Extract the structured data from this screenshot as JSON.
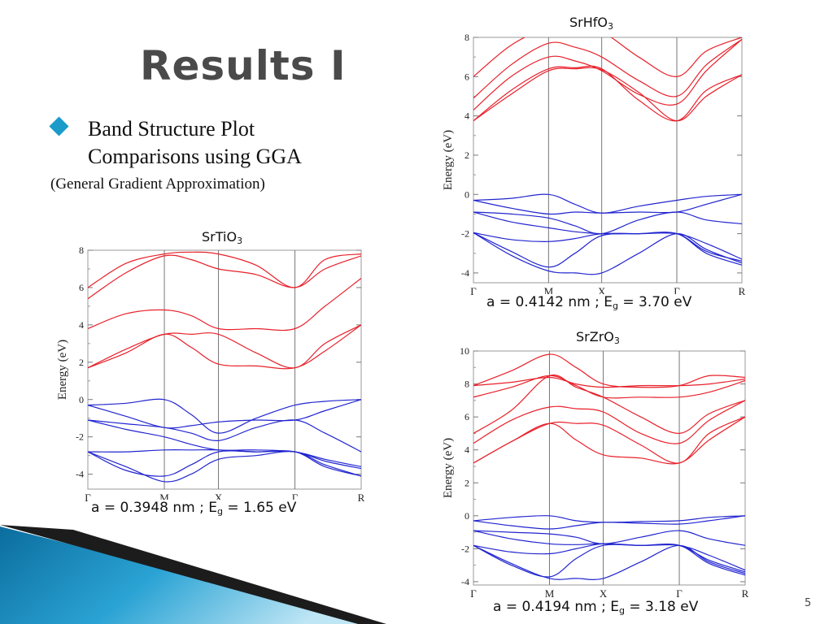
{
  "slide": {
    "title": "Results I",
    "bullet_lines": [
      "Band Structure Plot",
      "Comparisons using GGA"
    ],
    "sub_text": "(General Gradient Approximation)",
    "page_number": "5"
  },
  "colors": {
    "conduction": "#e8202a",
    "valence": "#2125cf",
    "bullet": "#1a9bc9",
    "title": "#4a4a4a"
  },
  "panels": {
    "srhfo3": {
      "title_main": "SrHfO",
      "title_sub": "3",
      "caption_a": "a = 0.4142 nm ; E",
      "caption_sub": "g",
      "caption_b": " = 3.70 eV"
    },
    "srtio3": {
      "title_main": "SrTiO",
      "title_sub": "3",
      "caption_a": "a = 0.3948 nm ; E",
      "caption_sub": "g",
      "caption_b": " = 1.65 eV"
    },
    "srzro3": {
      "title_main": "SrZrO",
      "title_sub": "3",
      "caption_a": "a = 0.4194 nm ; E",
      "caption_sub": "g",
      "caption_b": " = 3.18 eV"
    }
  },
  "chart_data": [
    {
      "type": "line",
      "title": "SrHfO3",
      "ylabel": "Energy (eV)",
      "ylim": [
        -4.5,
        8
      ],
      "yticks": [
        -4,
        -2,
        0,
        2,
        4,
        6,
        8
      ],
      "kpoints": [
        "Γ",
        "M",
        "X",
        "Γ",
        "R"
      ],
      "kpoint_positions": [
        0,
        1,
        1.7071,
        2.7071,
        3.5731
      ],
      "grid": false,
      "series": [
        {
          "band": "conduction",
          "x": [
            0,
            0.5,
            1,
            1.35,
            1.7071,
            2.2,
            2.7071,
            3.1,
            3.5731
          ],
          "y": [
            3.75,
            5.3,
            6.4,
            6.45,
            6.4,
            4.8,
            3.75,
            5.3,
            6.1
          ]
        },
        {
          "band": "conduction",
          "x": [
            0,
            0.5,
            1,
            1.35,
            1.7071,
            2.2,
            2.7071,
            3.1,
            3.5731
          ],
          "y": [
            3.75,
            5.1,
            6.3,
            6.4,
            6.35,
            5.2,
            3.75,
            5.0,
            6.1
          ]
        },
        {
          "band": "conduction",
          "x": [
            0,
            0.5,
            1,
            1.35,
            1.7071,
            2.2,
            2.7071,
            3.1,
            3.5731
          ],
          "y": [
            4.3,
            6.0,
            7.0,
            6.8,
            6.3,
            5.1,
            4.6,
            6.3,
            7.9
          ]
        },
        {
          "band": "conduction",
          "x": [
            0,
            0.5,
            1,
            1.35,
            1.7071,
            2.2,
            2.7071,
            3.1,
            3.5731
          ],
          "y": [
            4.9,
            6.6,
            7.7,
            7.5,
            7.0,
            5.8,
            5.0,
            6.6,
            7.9
          ]
        },
        {
          "band": "conduction",
          "x": [
            0,
            0.5,
            1,
            1.35,
            1.7071,
            2.2,
            2.7071,
            3.1,
            3.5731
          ],
          "y": [
            6.0,
            7.6,
            8.5,
            8.5,
            8.3,
            7.0,
            6.0,
            7.3,
            8.0
          ]
        },
        {
          "band": "valence",
          "x": [
            0,
            0.5,
            1,
            1.35,
            1.7071,
            2.2,
            2.7071,
            3.1,
            3.5731
          ],
          "y": [
            -0.3,
            -0.2,
            0.0,
            -0.5,
            -0.95,
            -0.6,
            -0.3,
            -0.1,
            0.0
          ]
        },
        {
          "band": "valence",
          "x": [
            0,
            0.5,
            1,
            1.35,
            1.7071,
            2.2,
            2.7071,
            3.1,
            3.5731
          ],
          "y": [
            -0.3,
            -0.7,
            -1.0,
            -0.9,
            -0.95,
            -0.9,
            -0.9,
            -0.5,
            0.0
          ]
        },
        {
          "band": "valence",
          "x": [
            0,
            0.5,
            1,
            1.35,
            1.7071,
            2.2,
            2.7071,
            3.1,
            3.5731
          ],
          "y": [
            -0.9,
            -1.0,
            -1.2,
            -1.6,
            -2.0,
            -1.3,
            -0.9,
            -1.3,
            -1.5
          ]
        },
        {
          "band": "valence",
          "x": [
            0,
            0.5,
            1,
            1.35,
            1.7071,
            2.2,
            2.7071,
            3.1,
            3.5731
          ],
          "y": [
            -0.9,
            -1.4,
            -1.7,
            -1.9,
            -2.0,
            -2.0,
            -2.0,
            -2.5,
            -3.3
          ]
        },
        {
          "band": "valence",
          "x": [
            0,
            0.5,
            1,
            1.35,
            1.7071,
            2.2,
            2.7071,
            3.1,
            3.5731
          ],
          "y": [
            -1.95,
            -2.3,
            -2.4,
            -2.25,
            -2.0,
            -2.0,
            -2.0,
            -2.9,
            -3.4
          ]
        },
        {
          "band": "valence",
          "x": [
            0,
            0.5,
            1,
            1.35,
            1.7071,
            2.2,
            2.7071,
            3.1,
            3.5731
          ],
          "y": [
            -1.95,
            -3.1,
            -3.9,
            -4.0,
            -4.0,
            -3.0,
            -2.0,
            -2.8,
            -3.5
          ]
        },
        {
          "band": "valence",
          "x": [
            0,
            0.5,
            1,
            1.35,
            1.7071,
            2.2,
            2.7071,
            3.1,
            3.5731
          ],
          "y": [
            -1.95,
            -2.9,
            -3.7,
            -3.0,
            -2.1,
            -2.0,
            -2.0,
            -3.0,
            -3.6
          ]
        }
      ]
    },
    {
      "type": "line",
      "title": "SrTiO3",
      "ylabel": "Energy (eV)",
      "ylim": [
        -4.8,
        8
      ],
      "yticks": [
        -4,
        -2,
        0,
        2,
        4,
        6,
        8
      ],
      "kpoints": [
        "Γ",
        "M",
        "X",
        "Γ",
        "R"
      ],
      "kpoint_positions": [
        0,
        1,
        1.7071,
        2.7071,
        3.5731
      ],
      "grid": false,
      "series": [
        {
          "band": "conduction",
          "x": [
            0,
            0.5,
            1,
            1.35,
            1.7071,
            2.2,
            2.7071,
            3.1,
            3.5731
          ],
          "y": [
            1.7,
            2.7,
            3.5,
            3.5,
            3.5,
            2.5,
            1.7,
            3.0,
            4.0
          ]
        },
        {
          "band": "conduction",
          "x": [
            0,
            0.5,
            1,
            1.35,
            1.7071,
            2.2,
            2.7071,
            3.1,
            3.5731
          ],
          "y": [
            1.7,
            2.5,
            3.5,
            2.8,
            1.9,
            1.8,
            1.7,
            2.6,
            4.0
          ]
        },
        {
          "band": "conduction",
          "x": [
            0,
            0.5,
            1,
            1.35,
            1.7071,
            2.2,
            2.7071,
            3.1,
            3.5731
          ],
          "y": [
            3.8,
            4.6,
            4.8,
            4.5,
            3.8,
            3.8,
            3.8,
            5.0,
            6.5
          ]
        },
        {
          "band": "conduction",
          "x": [
            0,
            0.5,
            1,
            1.35,
            1.7071,
            2.2,
            2.7071,
            3.1,
            3.5731
          ],
          "y": [
            5.4,
            6.8,
            7.7,
            7.5,
            7.0,
            6.7,
            6.0,
            7.0,
            7.7
          ]
        },
        {
          "band": "conduction",
          "x": [
            0,
            0.5,
            1,
            1.35,
            1.7071,
            2.2,
            2.7071,
            3.1,
            3.5731
          ],
          "y": [
            6.0,
            7.3,
            7.8,
            7.9,
            7.8,
            7.2,
            6.0,
            7.5,
            7.8
          ]
        },
        {
          "band": "valence",
          "x": [
            0,
            0.5,
            1,
            1.35,
            1.7071,
            2.2,
            2.7071,
            3.1,
            3.5731
          ],
          "y": [
            -0.3,
            -0.2,
            0.0,
            -0.8,
            -1.8,
            -1.0,
            -0.3,
            -0.1,
            0.0
          ]
        },
        {
          "band": "valence",
          "x": [
            0,
            0.5,
            1,
            1.35,
            1.7071,
            2.2,
            2.7071,
            3.1,
            3.5731
          ],
          "y": [
            -0.3,
            -0.9,
            -1.5,
            -1.4,
            -1.2,
            -1.1,
            -1.1,
            -0.6,
            0.0
          ]
        },
        {
          "band": "valence",
          "x": [
            0,
            0.5,
            1,
            1.35,
            1.7071,
            2.2,
            2.7071,
            3.1,
            3.5731
          ],
          "y": [
            -1.1,
            -1.3,
            -1.5,
            -1.8,
            -2.2,
            -1.5,
            -1.1,
            -1.8,
            -2.8
          ]
        },
        {
          "band": "valence",
          "x": [
            0,
            0.5,
            1,
            1.35,
            1.7071,
            2.2,
            2.7071,
            3.1,
            3.5731
          ],
          "y": [
            -1.1,
            -1.6,
            -2.0,
            -2.4,
            -2.7,
            -2.7,
            -2.8,
            -3.2,
            -3.6
          ]
        },
        {
          "band": "valence",
          "x": [
            0,
            0.5,
            1,
            1.35,
            1.7071,
            2.2,
            2.7071,
            3.1,
            3.5731
          ],
          "y": [
            -2.8,
            -2.8,
            -2.7,
            -2.7,
            -2.7,
            -2.8,
            -2.8,
            -3.3,
            -3.7
          ]
        },
        {
          "band": "valence",
          "x": [
            0,
            0.5,
            1,
            1.35,
            1.7071,
            2.2,
            2.7071,
            3.1,
            3.5731
          ],
          "y": [
            -2.8,
            -3.6,
            -4.4,
            -4.0,
            -3.2,
            -3.0,
            -2.8,
            -3.5,
            -4.1
          ]
        },
        {
          "band": "valence",
          "x": [
            0,
            0.5,
            1,
            1.35,
            1.7071,
            2.2,
            2.7071,
            3.1,
            3.5731
          ],
          "y": [
            -2.8,
            -3.8,
            -4.1,
            -3.5,
            -2.8,
            -2.8,
            -2.8,
            -3.6,
            -4.1
          ]
        }
      ]
    },
    {
      "type": "line",
      "title": "SrZrO3",
      "ylabel": "Energy (eV)",
      "ylim": [
        -4.2,
        10
      ],
      "yticks": [
        -4,
        -2,
        0,
        2,
        4,
        6,
        8,
        10
      ],
      "kpoints": [
        "Γ",
        "M",
        "X",
        "Γ",
        "R"
      ],
      "kpoint_positions": [
        0,
        1,
        1.7071,
        2.7071,
        3.5731
      ],
      "grid": false,
      "series": [
        {
          "band": "conduction",
          "x": [
            0,
            0.5,
            1,
            1.35,
            1.7071,
            2.2,
            2.7071,
            3.1,
            3.5731
          ],
          "y": [
            3.2,
            4.5,
            5.6,
            5.6,
            5.5,
            4.3,
            3.2,
            5.0,
            6.0
          ]
        },
        {
          "band": "conduction",
          "x": [
            0,
            0.5,
            1,
            1.35,
            1.7071,
            2.2,
            2.7071,
            3.1,
            3.5731
          ],
          "y": [
            3.2,
            4.5,
            5.6,
            4.6,
            3.7,
            3.5,
            3.2,
            4.6,
            6.0
          ]
        },
        {
          "band": "conduction",
          "x": [
            0,
            0.5,
            1,
            1.35,
            1.7071,
            2.2,
            2.7071,
            3.1,
            3.5731
          ],
          "y": [
            4.4,
            5.8,
            6.6,
            6.5,
            6.3,
            5.0,
            4.4,
            5.8,
            7.0
          ]
        },
        {
          "band": "conduction",
          "x": [
            0,
            0.5,
            1,
            1.35,
            1.7071,
            2.2,
            2.7071,
            3.1,
            3.5731
          ],
          "y": [
            5.0,
            6.4,
            8.5,
            7.8,
            7.2,
            6.0,
            5.0,
            6.2,
            7.0
          ]
        },
        {
          "band": "conduction",
          "x": [
            0,
            0.5,
            1,
            1.35,
            1.7071,
            2.2,
            2.7071,
            3.1,
            3.5731
          ],
          "y": [
            7.2,
            7.8,
            8.5,
            7.9,
            7.2,
            7.2,
            7.2,
            7.5,
            8.2
          ]
        },
        {
          "band": "conduction",
          "x": [
            0,
            0.5,
            1,
            1.35,
            1.7071,
            2.2,
            2.7071,
            3.1,
            3.5731
          ],
          "y": [
            7.9,
            8.1,
            8.4,
            8.0,
            7.8,
            7.9,
            7.9,
            8.0,
            8.3
          ]
        },
        {
          "band": "conduction",
          "x": [
            0,
            0.5,
            1,
            1.35,
            1.7071,
            2.2,
            2.7071,
            3.1,
            3.5731
          ],
          "y": [
            7.9,
            8.8,
            9.8,
            9.0,
            8.0,
            7.8,
            7.9,
            8.5,
            8.4
          ]
        },
        {
          "band": "valence",
          "x": [
            0,
            0.5,
            1,
            1.35,
            1.7071,
            2.2,
            2.7071,
            3.1,
            3.5731
          ],
          "y": [
            -0.3,
            -0.1,
            0.0,
            -0.3,
            -0.4,
            -0.35,
            -0.3,
            -0.1,
            0.0
          ]
        },
        {
          "band": "valence",
          "x": [
            0,
            0.5,
            1,
            1.35,
            1.7071,
            2.2,
            2.7071,
            3.1,
            3.5731
          ],
          "y": [
            -0.3,
            -0.6,
            -0.8,
            -0.6,
            -0.4,
            -0.45,
            -0.5,
            -0.3,
            0.0
          ]
        },
        {
          "band": "valence",
          "x": [
            0,
            0.5,
            1,
            1.35,
            1.7071,
            2.2,
            2.7071,
            3.1,
            3.5731
          ],
          "y": [
            -0.9,
            -1.0,
            -1.1,
            -1.3,
            -1.7,
            -1.3,
            -0.9,
            -1.4,
            -1.8
          ]
        },
        {
          "band": "valence",
          "x": [
            0,
            0.5,
            1,
            1.35,
            1.7071,
            2.2,
            2.7071,
            3.1,
            3.5731
          ],
          "y": [
            -0.9,
            -1.4,
            -1.7,
            -1.75,
            -1.7,
            -1.8,
            -1.8,
            -2.4,
            -3.3
          ]
        },
        {
          "band": "valence",
          "x": [
            0,
            0.5,
            1,
            1.35,
            1.7071,
            2.2,
            2.7071,
            3.1,
            3.5731
          ],
          "y": [
            -1.8,
            -2.2,
            -2.3,
            -2.0,
            -1.7,
            -1.8,
            -1.8,
            -2.7,
            -3.4
          ]
        },
        {
          "band": "valence",
          "x": [
            0,
            0.5,
            1,
            1.35,
            1.7071,
            2.2,
            2.7071,
            3.1,
            3.5731
          ],
          "y": [
            -1.8,
            -2.9,
            -3.8,
            -3.8,
            -3.8,
            -2.8,
            -1.8,
            -2.8,
            -3.5
          ]
        },
        {
          "band": "valence",
          "x": [
            0,
            0.5,
            1,
            1.35,
            1.7071,
            2.2,
            2.7071,
            3.1,
            3.5731
          ],
          "y": [
            -1.8,
            -3.0,
            -3.7,
            -2.6,
            -1.8,
            -1.8,
            -1.8,
            -2.9,
            -3.6
          ]
        }
      ]
    }
  ]
}
